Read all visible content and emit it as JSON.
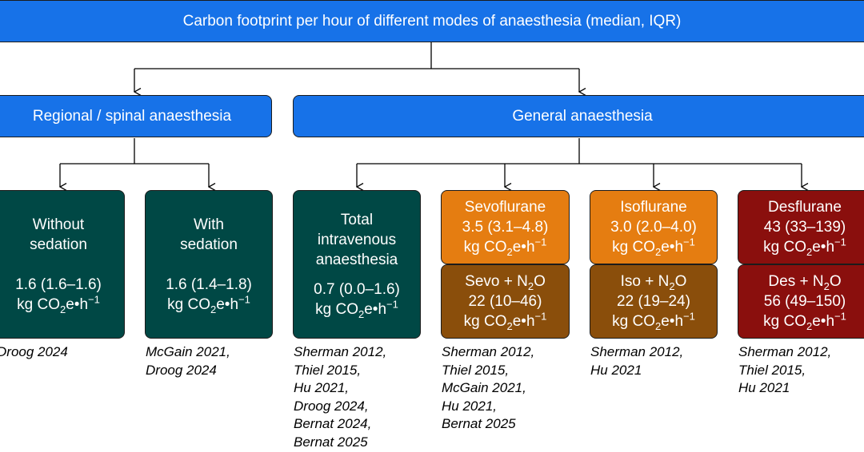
{
  "title": "Carbon footprint per hour of different modes of anaesthesia (median, IQR)",
  "categories": {
    "regional": "Regional / spinal anaesthesia",
    "general": "General anaesthesia"
  },
  "units": {
    "prefix": "kg CO",
    "sub": "2",
    "mid": "e•h",
    "sup": "−1"
  },
  "cards": {
    "without": {
      "name1": "Without",
      "name2": "sedation",
      "value": "1.6 (1.6–1.6)"
    },
    "with": {
      "name1": "With",
      "name2": "sedation",
      "value": "1.6 (1.4–1.8)"
    },
    "tiva": {
      "name1": "Total",
      "name2": "intravenous",
      "name3": "anaesthesia",
      "value": "0.7 (0.0–1.6)"
    },
    "sevo": {
      "name": "Sevoflurane",
      "value": "3.5 (3.1–4.8)"
    },
    "sevo_n2o": {
      "name": "Sevo + N",
      "n2o_sub": "2",
      "n2o_tail": "O",
      "value": "22 (10–46)"
    },
    "iso": {
      "name": "Isoflurane",
      "value": "3.0 (2.0–4.0)"
    },
    "iso_n2o": {
      "name": "Iso + N",
      "n2o_sub": "2",
      "n2o_tail": "O",
      "value": "22 (19–24)"
    },
    "des": {
      "name": "Desflurane",
      "value": "43 (33–139)"
    },
    "des_n2o": {
      "name": "Des + N",
      "n2o_sub": "2",
      "n2o_tail": "O",
      "value": "56 (49–150)"
    }
  },
  "references": {
    "without": [
      "Droog 2024"
    ],
    "with": [
      "McGain 2021,",
      "Droog 2024"
    ],
    "tiva": [
      "Sherman 2012,",
      "Thiel 2015,",
      "Hu 2021,",
      "Droog 2024,",
      "Bernat 2024,",
      "Bernat 2025"
    ],
    "sevo": [
      "Sherman 2012,",
      "Thiel 2015,",
      "McGain 2021,",
      "Hu 2021,",
      "Bernat 2025"
    ],
    "iso": [
      "Sherman 2012,",
      "Hu 2021"
    ],
    "des": [
      "Sherman 2012,",
      "Thiel 2015,",
      "Hu 2021"
    ]
  },
  "colors": {
    "blue": "#1772e8",
    "teal": "#004845",
    "orange": "#e57d11",
    "brown": "#8a4e0b",
    "red": "#8a0f0d"
  }
}
